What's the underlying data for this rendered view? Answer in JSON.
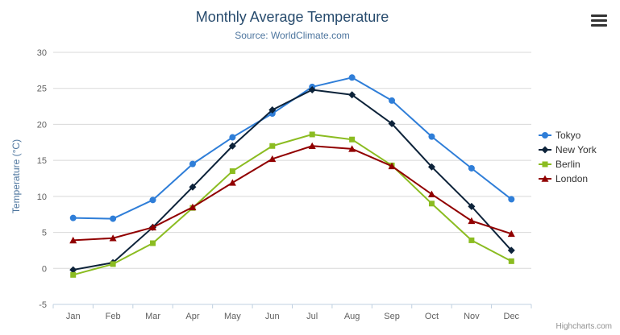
{
  "chart": {
    "title": "Monthly Average Temperature",
    "subtitle": "Source: WorldClimate.com",
    "credits": "Highcharts.com",
    "menu_icon": "hamburger-icon"
  },
  "chart_data": {
    "type": "line",
    "title": "Monthly Average Temperature",
    "subtitle": "Source: WorldClimate.com",
    "categories": [
      "Jan",
      "Feb",
      "Mar",
      "Apr",
      "May",
      "Jun",
      "Jul",
      "Aug",
      "Sep",
      "Oct",
      "Nov",
      "Dec"
    ],
    "xlabel": "",
    "ylabel": "Temperature (°C)",
    "ylim": [
      -5,
      30
    ],
    "yticks": [
      -5,
      0,
      5,
      10,
      15,
      20,
      25,
      30
    ],
    "grid": "horizontal",
    "legend_position": "right",
    "series": [
      {
        "name": "Tokyo",
        "color": "#2f7ed8",
        "marker": "circle",
        "values": [
          7.0,
          6.9,
          9.5,
          14.5,
          18.2,
          21.5,
          25.2,
          26.5,
          23.3,
          18.3,
          13.9,
          9.6
        ]
      },
      {
        "name": "New York",
        "color": "#0d233a",
        "marker": "diamond",
        "values": [
          -0.2,
          0.8,
          5.7,
          11.3,
          17.0,
          22.0,
          24.8,
          24.1,
          20.1,
          14.1,
          8.6,
          2.5
        ]
      },
      {
        "name": "Berlin",
        "color": "#8bbc21",
        "marker": "square",
        "values": [
          -0.9,
          0.6,
          3.5,
          8.4,
          13.5,
          17.0,
          18.6,
          17.9,
          14.3,
          9.0,
          3.9,
          1.0
        ]
      },
      {
        "name": "London",
        "color": "#910000",
        "marker": "triangle",
        "values": [
          3.9,
          4.2,
          5.7,
          8.5,
          11.9,
          15.2,
          17.0,
          16.6,
          14.2,
          10.3,
          6.6,
          4.8
        ]
      }
    ]
  }
}
